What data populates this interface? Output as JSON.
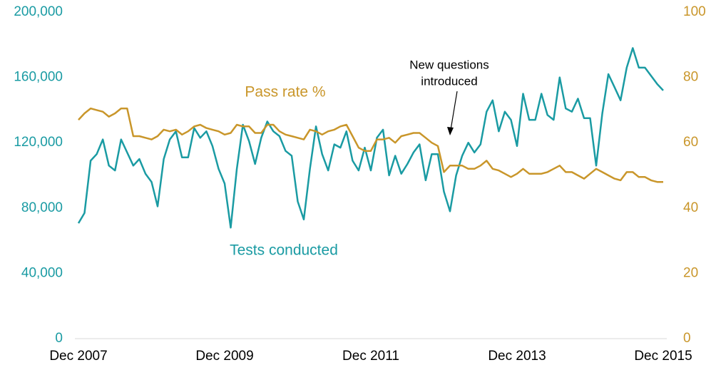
{
  "chart_data": {
    "type": "line",
    "categories": [
      "Dec 2007",
      null,
      null,
      null,
      null,
      null,
      null,
      null,
      null,
      null,
      null,
      null,
      null,
      null,
      null,
      null,
      null,
      null,
      null,
      null,
      null,
      null,
      null,
      null,
      "Dec 2009",
      null,
      null,
      null,
      null,
      null,
      null,
      null,
      null,
      null,
      null,
      null,
      null,
      null,
      null,
      null,
      null,
      null,
      null,
      null,
      null,
      null,
      null,
      null,
      "Dec 2011",
      null,
      null,
      null,
      null,
      null,
      null,
      null,
      null,
      null,
      null,
      null,
      null,
      null,
      null,
      null,
      null,
      null,
      null,
      null,
      null,
      null,
      null,
      null,
      "Dec 2013",
      null,
      null,
      null,
      null,
      null,
      null,
      null,
      null,
      null,
      null,
      null,
      null,
      null,
      null,
      null,
      null,
      null,
      null,
      null,
      null,
      null,
      null,
      null,
      "Dec 2015"
    ],
    "series": [
      {
        "name": "Tests conducted",
        "color": "#1a9ba3",
        "axis": "y",
        "values": [
          70700,
          77000,
          109000,
          113000,
          122000,
          106000,
          103000,
          122000,
          114000,
          106000,
          110000,
          101000,
          96000,
          81000,
          110000,
          122000,
          127000,
          111000,
          111000,
          129000,
          123000,
          127000,
          118000,
          104000,
          95000,
          68000,
          104000,
          131000,
          121000,
          107000,
          123000,
          133000,
          127000,
          124000,
          115000,
          112000,
          84000,
          73000,
          104000,
          130000,
          113000,
          103000,
          119000,
          117000,
          127000,
          109000,
          103000,
          117000,
          103000,
          123000,
          128000,
          100000,
          112000,
          101000,
          107000,
          114000,
          119000,
          97000,
          113000,
          113000,
          90000,
          78000,
          100000,
          112000,
          120000,
          114000,
          119000,
          139000,
          146000,
          127000,
          139000,
          134000,
          118000,
          150000,
          134000,
          134000,
          150000,
          137000,
          134000,
          160000,
          141000,
          139000,
          147000,
          135000,
          135000,
          106000,
          138000,
          162000,
          154000,
          146000,
          166000,
          178000,
          166000,
          166000,
          161000,
          156000,
          152000
        ]
      },
      {
        "name": "Pass rate %",
        "color": "#c9962a",
        "axis": "y2",
        "values": [
          67,
          69,
          70.5,
          70,
          69.5,
          68,
          69,
          70.5,
          70.5,
          62,
          62,
          61.5,
          61,
          62,
          64,
          63.5,
          64,
          62.5,
          63.5,
          65,
          65.5,
          64.5,
          64,
          63.5,
          62.5,
          63,
          65.5,
          65,
          65,
          63,
          63,
          65.5,
          65.5,
          63.5,
          62.5,
          62,
          61.5,
          61,
          64,
          63.5,
          62.5,
          63.5,
          64,
          65,
          65.5,
          62,
          58.5,
          57.5,
          57.5,
          61,
          61,
          61.5,
          60,
          62,
          62.5,
          63,
          63,
          61.5,
          60,
          59,
          51,
          53,
          53,
          53,
          52,
          52,
          53,
          54.5,
          52,
          51.5,
          50.5,
          49.5,
          50.5,
          52,
          50.5,
          50.5,
          50.5,
          51,
          52,
          53,
          51,
          51,
          50,
          49,
          50.5,
          52,
          51,
          50,
          49,
          48.5,
          51,
          51,
          49.5,
          49.5,
          48.5,
          48,
          48
        ]
      }
    ],
    "ylim": [
      0,
      200000
    ],
    "yticks": [
      0,
      {
        "value": 40000,
        "label": "40,000"
      },
      {
        "value": 80000,
        "label": "80,000"
      },
      {
        "value": 120000,
        "label": "120,000"
      },
      {
        "value": 160000,
        "label": "160,000"
      },
      {
        "value": 200000,
        "label": "200,000"
      }
    ],
    "y2lim": [
      0,
      100
    ],
    "y2ticks": [
      0,
      20,
      40,
      60,
      80,
      100
    ],
    "annotations": [
      {
        "text": [
          "Pass rate %"
        ],
        "series": 1
      },
      {
        "text": [
          "Tests conducted"
        ],
        "series": 0
      },
      {
        "text": [
          "New questions",
          "introduced"
        ]
      }
    ]
  }
}
